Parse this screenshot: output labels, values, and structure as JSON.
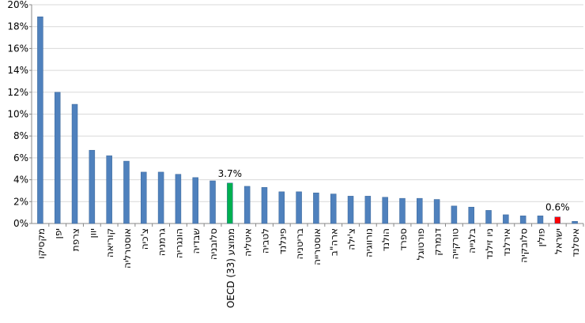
{
  "chart_data": {
    "type": "bar",
    "categories": [
      "מקסיקו",
      "יפן",
      "צרפת",
      "יוון",
      "קוריאה",
      "אוסטרליה",
      "צ'כיה",
      "גרמניה",
      "הונגריה",
      "שבדיה",
      "סלובניה",
      "ממוצע (33) OECD",
      "איטליה",
      "לטביה",
      "פינלנד",
      "בריטניה",
      "אוסטרייה",
      "ארה\"ב",
      "צ'ילה",
      "נורווגיה",
      "הולנד",
      "ספרד",
      "פורטוגל",
      "דנמרק",
      "טורקייה",
      "בלגייה",
      "ניו זילנד",
      "אירלנד",
      "סלובקיה",
      "פולין",
      "ישראל",
      "איסלנד"
    ],
    "values": [
      18.9,
      12.0,
      10.9,
      6.7,
      6.2,
      5.7,
      4.7,
      4.7,
      4.5,
      4.2,
      3.9,
      3.7,
      3.4,
      3.3,
      2.9,
      2.9,
      2.8,
      2.7,
      2.5,
      2.5,
      2.4,
      2.3,
      2.3,
      2.2,
      1.6,
      1.5,
      1.2,
      0.8,
      0.7,
      0.7,
      0.6,
      0.2
    ],
    "value_labels": [
      null,
      null,
      null,
      null,
      null,
      null,
      null,
      null,
      null,
      null,
      null,
      "3.7%",
      null,
      null,
      null,
      null,
      null,
      null,
      null,
      null,
      null,
      null,
      null,
      null,
      null,
      null,
      null,
      null,
      null,
      null,
      "0.6%",
      null
    ],
    "colors": [
      "#4f81bd",
      "#4f81bd",
      "#4f81bd",
      "#4f81bd",
      "#4f81bd",
      "#4f81bd",
      "#4f81bd",
      "#4f81bd",
      "#4f81bd",
      "#4f81bd",
      "#4f81bd",
      "#00b050",
      "#4f81bd",
      "#4f81bd",
      "#4f81bd",
      "#4f81bd",
      "#4f81bd",
      "#4f81bd",
      "#4f81bd",
      "#4f81bd",
      "#4f81bd",
      "#4f81bd",
      "#4f81bd",
      "#4f81bd",
      "#4f81bd",
      "#4f81bd",
      "#4f81bd",
      "#4f81bd",
      "#4f81bd",
      "#4f81bd",
      "#ff0000",
      "#4f81bd"
    ],
    "ylim": [
      0,
      20
    ],
    "yticks": [
      {
        "value": 0,
        "label": "0%"
      },
      {
        "value": 2,
        "label": "2%"
      },
      {
        "value": 4,
        "label": "4%"
      },
      {
        "value": 6,
        "label": "6%"
      },
      {
        "value": 8,
        "label": "8%"
      },
      {
        "value": 10,
        "label": "10%"
      },
      {
        "value": 12,
        "label": "12%"
      },
      {
        "value": 14,
        "label": "14%"
      },
      {
        "value": 16,
        "label": "16%"
      },
      {
        "value": 18,
        "label": "18%"
      },
      {
        "value": 20,
        "label": "20%"
      }
    ],
    "grid": true
  }
}
